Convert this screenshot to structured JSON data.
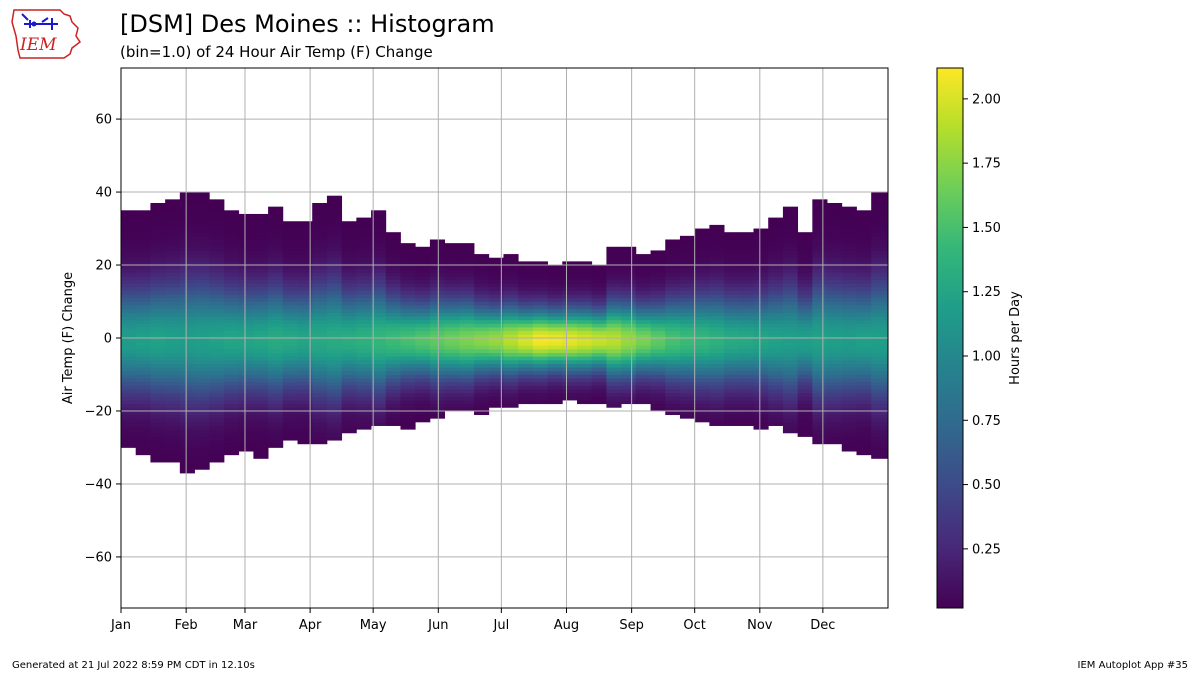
{
  "header": {
    "title": "[DSM] Des Moines :: Histogram",
    "subtitle": "(bin=1.0) of 24 Hour Air Temp (F) Change",
    "logo_text": "IEM"
  },
  "footer": {
    "generated": "Generated at 21 Jul 2022 8:59 PM CDT in 12.10s",
    "app": "IEM Autoplot App #35"
  },
  "colors": {
    "viridis": [
      "#440154",
      "#482878",
      "#3e4989",
      "#31688e",
      "#26828e",
      "#1f9e89",
      "#35b779",
      "#6ece58",
      "#b5de2b",
      "#fde725"
    ],
    "grid": "#b0b0b0",
    "logo_red": "#cc2222",
    "logo_blue": "#1a1acc"
  },
  "chart_data": {
    "type": "heatmap",
    "xlabel": "",
    "ylabel": "Air Temp (F) Change",
    "ylim": [
      -74,
      74
    ],
    "yticks": [
      -60,
      -40,
      -20,
      0,
      20,
      40,
      60
    ],
    "xlim": [
      1,
      366
    ],
    "xticks": [
      {
        "label": "Jan",
        "day": 1
      },
      {
        "label": "Feb",
        "day": 32
      },
      {
        "label": "Mar",
        "day": 60
      },
      {
        "label": "Apr",
        "day": 91
      },
      {
        "label": "May",
        "day": 121
      },
      {
        "label": "Jun",
        "day": 152
      },
      {
        "label": "Jul",
        "day": 182
      },
      {
        "label": "Aug",
        "day": 213
      },
      {
        "label": "Sep",
        "day": 244
      },
      {
        "label": "Oct",
        "day": 274
      },
      {
        "label": "Nov",
        "day": 305
      },
      {
        "label": "Dec",
        "day": 335
      }
    ],
    "grid": true,
    "bin": 1.0,
    "week_bin_days": 7,
    "colorbar": {
      "label": "Hours per Day",
      "min": 0.02,
      "max": 2.12,
      "ticks": [
        0.25,
        0.5,
        0.75,
        1.0,
        1.25,
        1.5,
        1.75,
        2.0
      ],
      "tick_labels": [
        "0.25",
        "0.50",
        "0.75",
        "1.00",
        "1.25",
        "1.50",
        "1.75",
        "2.00"
      ]
    },
    "weekly_envelope": {
      "week_start_day": [
        1,
        8,
        15,
        22,
        29,
        36,
        43,
        50,
        57,
        64,
        71,
        78,
        85,
        92,
        99,
        106,
        113,
        120,
        127,
        134,
        141,
        148,
        155,
        162,
        169,
        176,
        183,
        190,
        197,
        204,
        211,
        218,
        225,
        232,
        239,
        246,
        253,
        260,
        267,
        274,
        281,
        288,
        295,
        302,
        309,
        316,
        323,
        330,
        337,
        344,
        351,
        358
      ],
      "upper_f": [
        35,
        35,
        37,
        38,
        40,
        40,
        38,
        35,
        34,
        34,
        36,
        32,
        32,
        37,
        39,
        32,
        33,
        35,
        29,
        26,
        25,
        27,
        26,
        26,
        23,
        22,
        23,
        21,
        21,
        20,
        21,
        21,
        20,
        25,
        25,
        23,
        24,
        27,
        28,
        30,
        31,
        29,
        29,
        30,
        33,
        36,
        29,
        38,
        37,
        36,
        35,
        40
      ],
      "lower_f": [
        -30,
        -32,
        -34,
        -34,
        -37,
        -36,
        -34,
        -32,
        -31,
        -33,
        -30,
        -28,
        -29,
        -29,
        -28,
        -26,
        -25,
        -24,
        -24,
        -25,
        -23,
        -22,
        -20,
        -20,
        -21,
        -19,
        -19,
        -18,
        -18,
        -18,
        -17,
        -18,
        -18,
        -19,
        -18,
        -18,
        -20,
        -21,
        -22,
        -23,
        -24,
        -24,
        -24,
        -25,
        -24,
        -26,
        -27,
        -29,
        -29,
        -31,
        -32,
        -33
      ],
      "peak_hours": [
        1.18,
        1.2,
        1.22,
        1.2,
        1.18,
        1.2,
        1.22,
        1.25,
        1.24,
        1.26,
        1.3,
        1.28,
        1.25,
        1.28,
        1.3,
        1.32,
        1.35,
        1.4,
        1.45,
        1.5,
        1.55,
        1.6,
        1.65,
        1.7,
        1.75,
        1.8,
        1.9,
        2.0,
        2.1,
        2.08,
        2.05,
        2.0,
        1.95,
        1.9,
        1.8,
        1.7,
        1.6,
        1.5,
        1.45,
        1.4,
        1.35,
        1.3,
        1.28,
        1.25,
        1.22,
        1.2,
        1.2,
        1.22,
        1.2,
        1.18,
        1.2,
        1.2
      ]
    }
  }
}
